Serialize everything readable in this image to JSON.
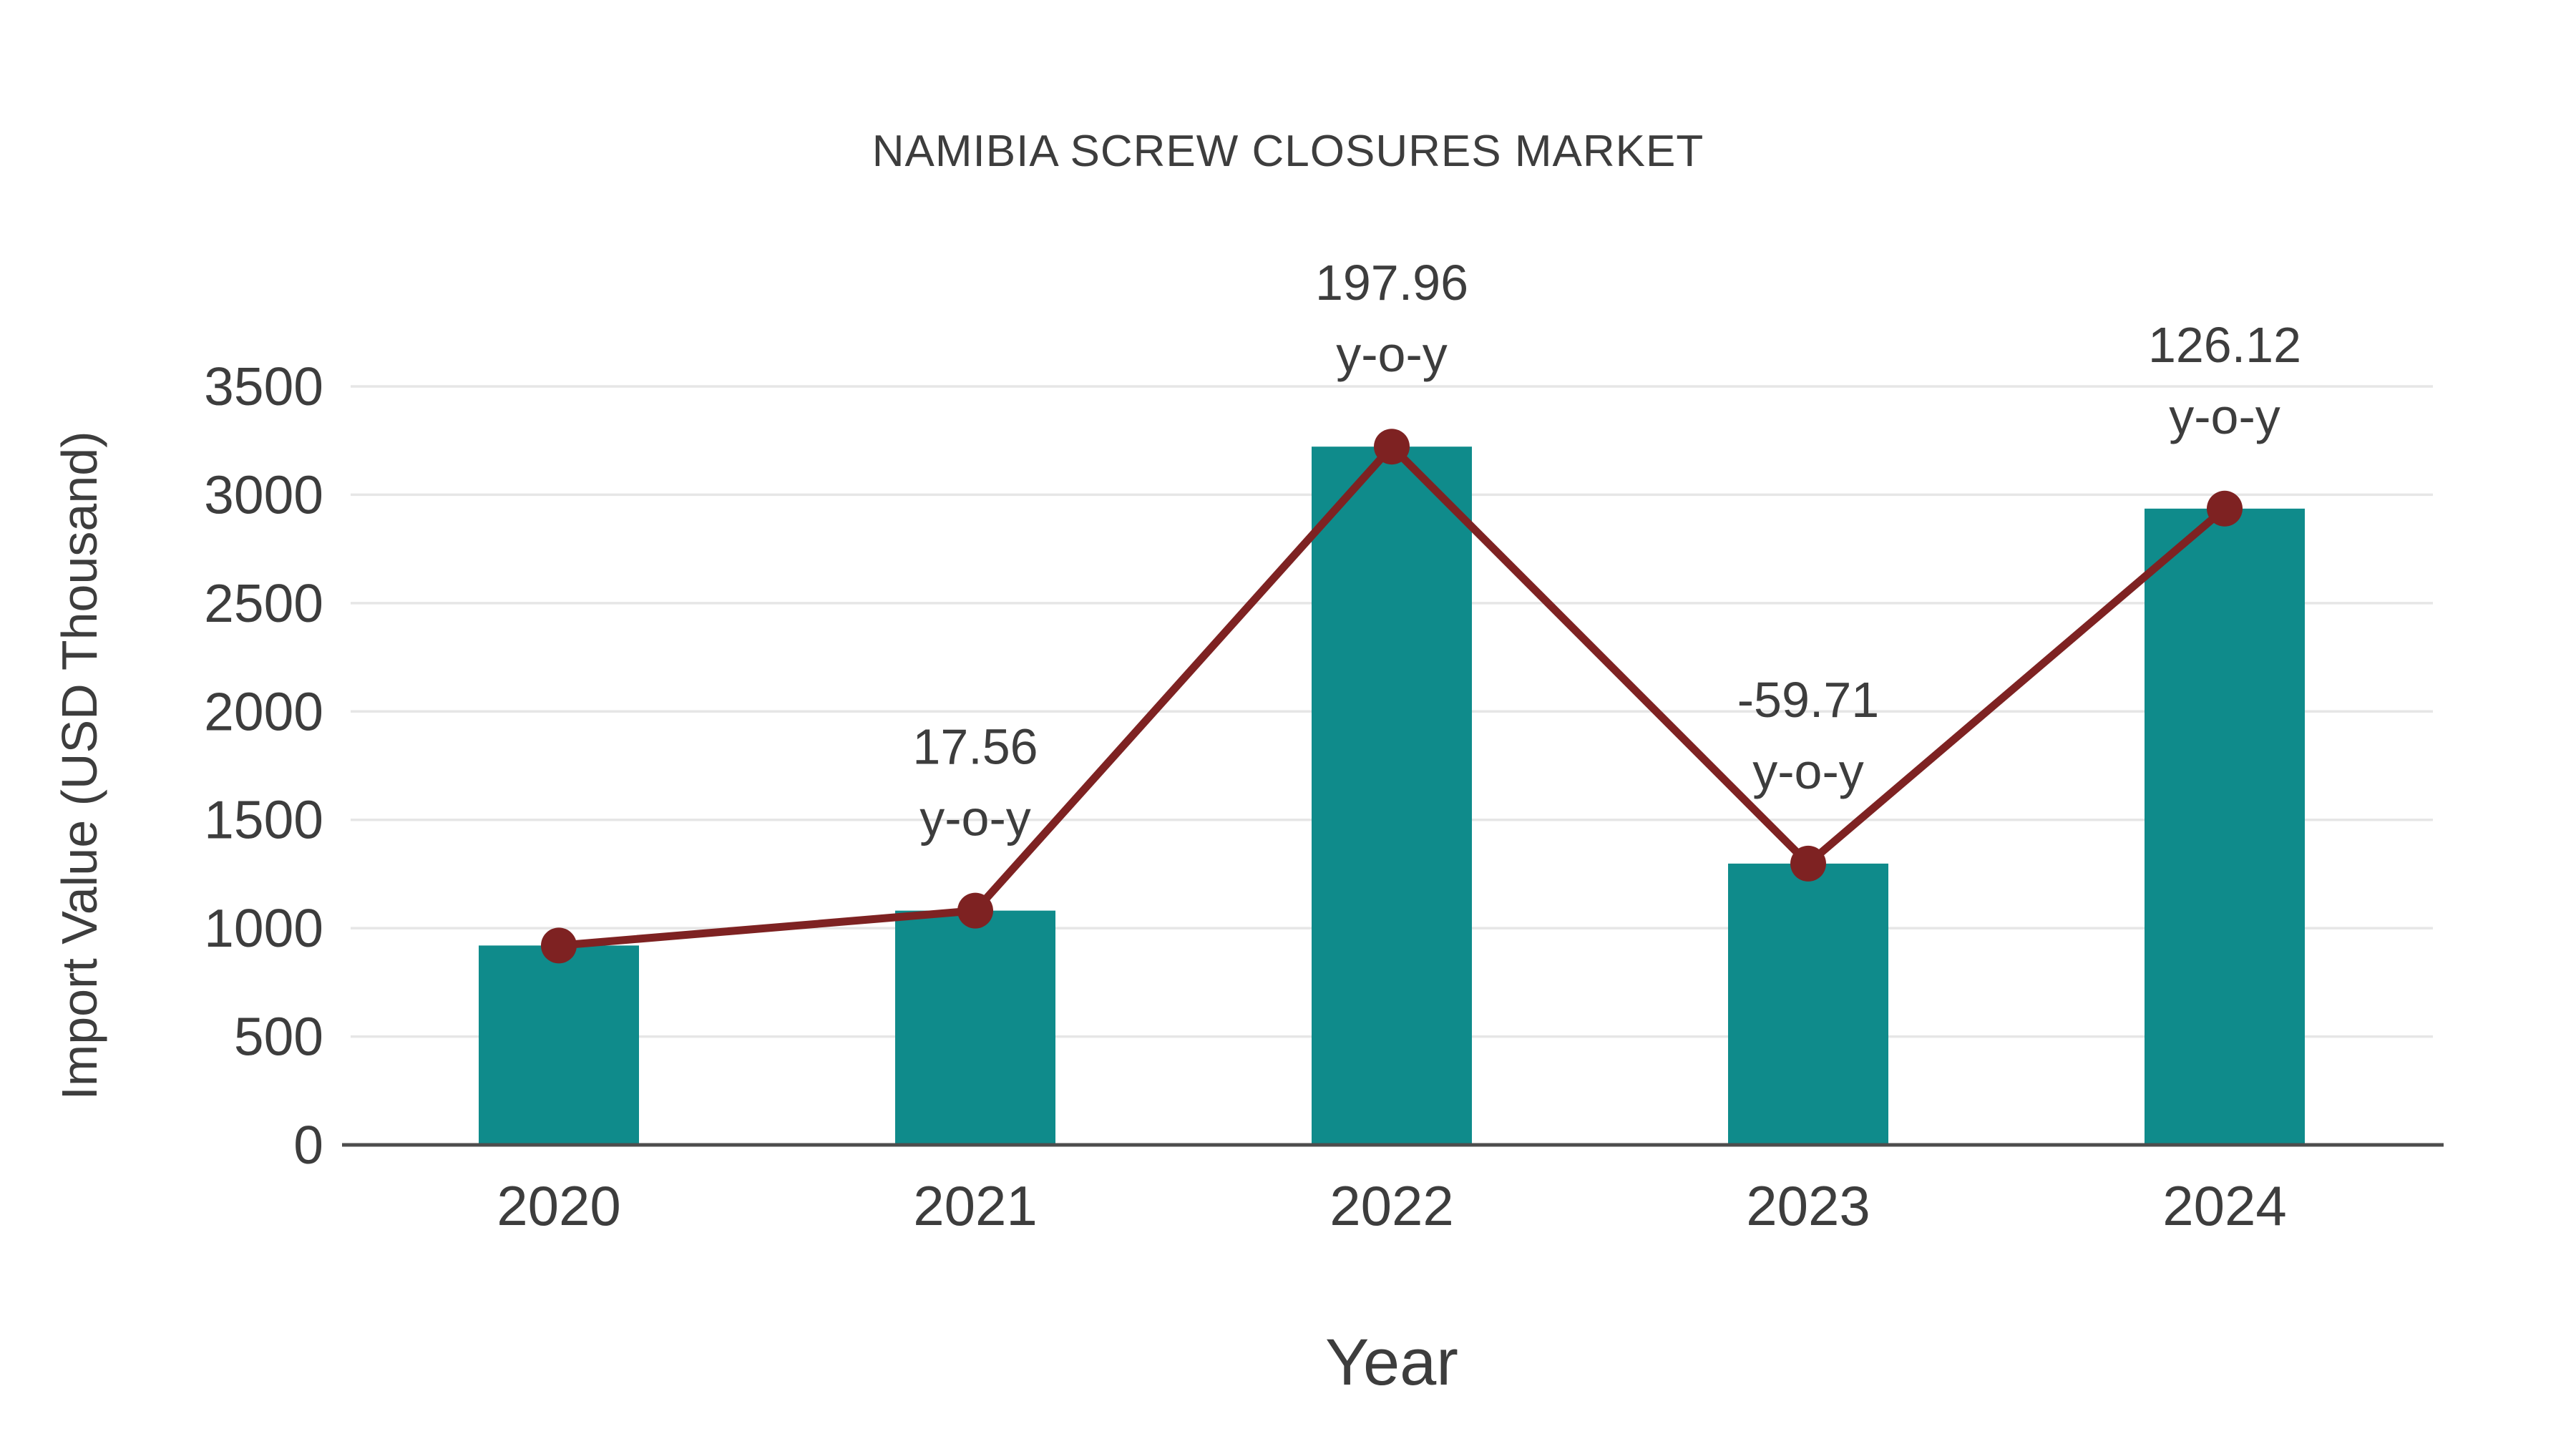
{
  "page": {
    "background": "#ffffff"
  },
  "chart_data": {
    "type": "bar",
    "title": "NAMIBIA SCREW CLOSURES MARKET",
    "xlabel": "Year",
    "ylabel": "Import Value (USD Thousand)",
    "categories": [
      "2020",
      "2021",
      "2022",
      "2023",
      "2024"
    ],
    "series": [
      {
        "name": "import-value-bars",
        "type": "bar",
        "values": [
          920,
          1081,
          3222,
          1298,
          2936
        ],
        "color": "#0f8b8b"
      },
      {
        "name": "yoy-line",
        "type": "line",
        "values": [
          920,
          1081,
          3222,
          1298,
          2936
        ],
        "color": "#7e2222"
      }
    ],
    "annotations": [
      {
        "category": "2021",
        "value_label": "17.56",
        "suffix": "y-o-y"
      },
      {
        "category": "2022",
        "value_label": "197.96",
        "suffix": "y-o-y"
      },
      {
        "category": "2023",
        "value_label": "-59.71",
        "suffix": "y-o-y"
      },
      {
        "category": "2024",
        "value_label": "126.12",
        "suffix": "y-o-y"
      }
    ],
    "ytick_values": [
      0,
      500,
      1000,
      1500,
      2000,
      2500,
      3000,
      3500
    ],
    "ylim": [
      0,
      3500
    ],
    "grid": "horizontal",
    "legend": "none",
    "colors": {
      "bar": "#0f8b8b",
      "line": "#7e2222",
      "text": "#3d3d3d",
      "grid": "#e6e6e6",
      "axis": "#4d4d4d"
    }
  }
}
